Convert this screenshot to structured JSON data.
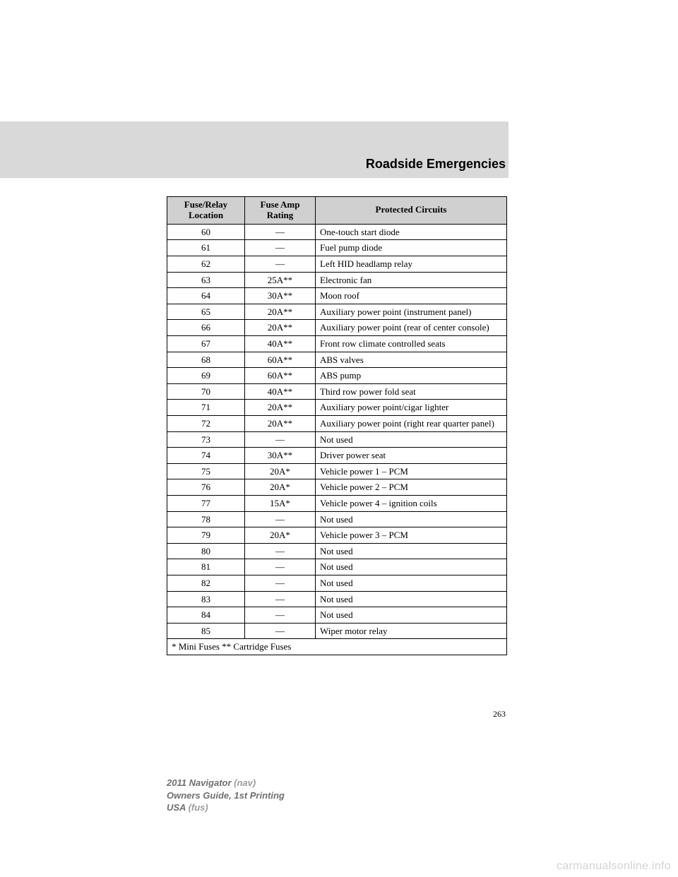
{
  "page": {
    "section_title": "Roadside Emergencies",
    "page_number": "263",
    "watermark": "carmanualsonline.info"
  },
  "footer": {
    "line1a": "2011 Navigator ",
    "line1b": "(nav)",
    "line2": "Owners Guide, 1st Printing",
    "line3a": "USA ",
    "line3b": "(fus)"
  },
  "table": {
    "headers": {
      "col1": "Fuse/Relay\nLocation",
      "col2": "Fuse Amp\nRating",
      "col3": "Protected Circuits"
    },
    "rows": [
      {
        "loc": "60",
        "amp": "—",
        "circ": "One-touch start diode"
      },
      {
        "loc": "61",
        "amp": "—",
        "circ": "Fuel pump diode"
      },
      {
        "loc": "62",
        "amp": "—",
        "circ": "Left HID headlamp relay"
      },
      {
        "loc": "63",
        "amp": "25A**",
        "circ": "Electronic fan"
      },
      {
        "loc": "64",
        "amp": "30A**",
        "circ": "Moon roof"
      },
      {
        "loc": "65",
        "amp": "20A**",
        "circ": "Auxiliary power point (instrument panel)"
      },
      {
        "loc": "66",
        "amp": "20A**",
        "circ": "Auxiliary power point (rear of center console)"
      },
      {
        "loc": "67",
        "amp": "40A**",
        "circ": "Front row climate controlled seats"
      },
      {
        "loc": "68",
        "amp": "60A**",
        "circ": "ABS valves"
      },
      {
        "loc": "69",
        "amp": "60A**",
        "circ": "ABS pump"
      },
      {
        "loc": "70",
        "amp": "40A**",
        "circ": "Third row power fold seat"
      },
      {
        "loc": "71",
        "amp": "20A**",
        "circ": "Auxiliary power point/cigar lighter"
      },
      {
        "loc": "72",
        "amp": "20A**",
        "circ": "Auxiliary power point (right rear quarter panel)"
      },
      {
        "loc": "73",
        "amp": "—",
        "circ": "Not used"
      },
      {
        "loc": "74",
        "amp": "30A**",
        "circ": "Driver power seat"
      },
      {
        "loc": "75",
        "amp": "20A*",
        "circ": "Vehicle power 1 – PCM"
      },
      {
        "loc": "76",
        "amp": "20A*",
        "circ": "Vehicle power 2 – PCM"
      },
      {
        "loc": "77",
        "amp": "15A*",
        "circ": "Vehicle power 4 – ignition coils"
      },
      {
        "loc": "78",
        "amp": "—",
        "circ": "Not used"
      },
      {
        "loc": "79",
        "amp": "20A*",
        "circ": "Vehicle power 3 – PCM"
      },
      {
        "loc": "80",
        "amp": "—",
        "circ": "Not used"
      },
      {
        "loc": "81",
        "amp": "—",
        "circ": "Not used"
      },
      {
        "loc": "82",
        "amp": "—",
        "circ": "Not used"
      },
      {
        "loc": "83",
        "amp": "—",
        "circ": "Not used"
      },
      {
        "loc": "84",
        "amp": "—",
        "circ": "Not used"
      },
      {
        "loc": "85",
        "amp": "—",
        "circ": "Wiper motor relay"
      }
    ],
    "footnote": "* Mini Fuses ** Cartridge Fuses"
  }
}
